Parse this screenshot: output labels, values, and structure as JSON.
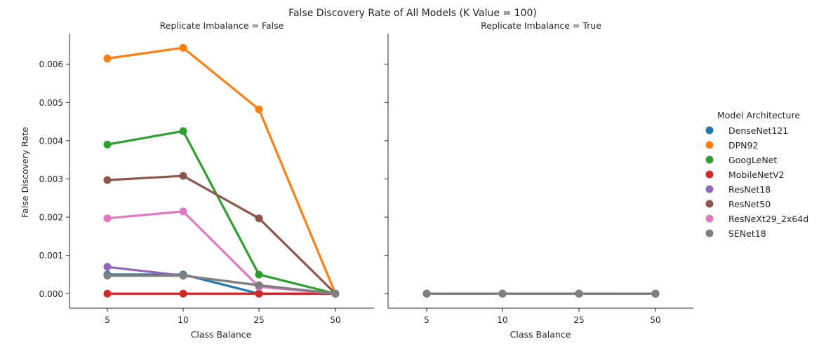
{
  "chart_data": {
    "type": "line",
    "title": "False Discovery Rate of All Models (K Value = 100)",
    "xlabel": "Class Balance",
    "ylabel": "False Discovery Rate",
    "categories": [
      "5",
      "10",
      "25",
      "50"
    ],
    "ylim": [
      -0.00038,
      0.0068
    ],
    "yticks": [
      "0.000",
      "0.001",
      "0.002",
      "0.003",
      "0.004",
      "0.005",
      "0.006"
    ],
    "legend": {
      "title": "Model Architecture",
      "placement": "right"
    },
    "panels": [
      {
        "title": "Replicate Imbalance = False",
        "series": [
          {
            "name": "DenseNet121",
            "color": "#1f77b4",
            "values": [
              0.0005,
              0.0005,
              0.0,
              0.0
            ]
          },
          {
            "name": "DPN92",
            "color": "#ff7f0e",
            "values": [
              0.00615,
              0.00643,
              0.00482,
              0.0
            ]
          },
          {
            "name": "GoogLeNet",
            "color": "#2ca02c",
            "values": [
              0.0039,
              0.00425,
              0.0005,
              0.0
            ]
          },
          {
            "name": "MobileNetV2",
            "color": "#d62728",
            "values": [
              0.0,
              0.0,
              0.0,
              0.0
            ]
          },
          {
            "name": "ResNet18",
            "color": "#9467bd",
            "values": [
              0.0007,
              0.00047,
              0.00022,
              0.0
            ]
          },
          {
            "name": "ResNet50",
            "color": "#8c564b",
            "values": [
              0.00297,
              0.00308,
              0.00197,
              0.0
            ]
          },
          {
            "name": "ResNeXt29_2x64d",
            "color": "#e377c2",
            "values": [
              0.00197,
              0.00215,
              0.00018,
              0.0
            ]
          },
          {
            "name": "SENet18",
            "color": "#7f7f7f",
            "values": [
              0.00047,
              0.00047,
              0.00022,
              0.0
            ]
          }
        ]
      },
      {
        "title": "Replicate Imbalance = True",
        "series": [
          {
            "name": "DenseNet121",
            "color": "#1f77b4",
            "values": [
              0.0,
              0.0,
              0.0,
              0.0
            ]
          },
          {
            "name": "DPN92",
            "color": "#ff7f0e",
            "values": [
              0.0,
              0.0,
              0.0,
              0.0
            ]
          },
          {
            "name": "GoogLeNet",
            "color": "#2ca02c",
            "values": [
              0.0,
              0.0,
              0.0,
              0.0
            ]
          },
          {
            "name": "MobileNetV2",
            "color": "#d62728",
            "values": [
              0.0,
              0.0,
              0.0,
              0.0
            ]
          },
          {
            "name": "ResNet18",
            "color": "#9467bd",
            "values": [
              0.0,
              0.0,
              0.0,
              0.0
            ]
          },
          {
            "name": "ResNet50",
            "color": "#8c564b",
            "values": [
              0.0,
              0.0,
              0.0,
              0.0
            ]
          },
          {
            "name": "ResNeXt29_2x64d",
            "color": "#e377c2",
            "values": [
              0.0,
              0.0,
              0.0,
              0.0
            ]
          },
          {
            "name": "SENet18",
            "color": "#7f7f7f",
            "values": [
              0.0,
              0.0,
              0.0,
              0.0
            ]
          }
        ]
      }
    ]
  }
}
